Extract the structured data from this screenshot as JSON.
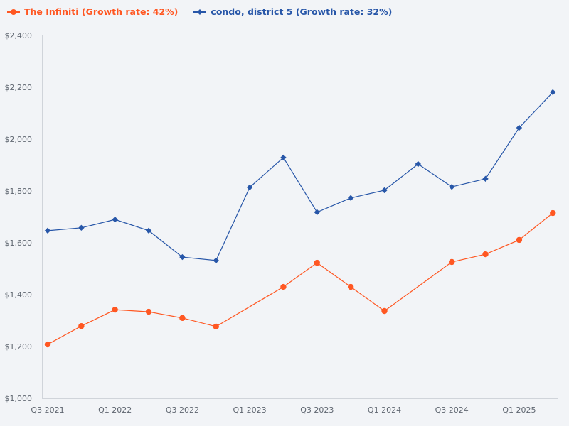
{
  "chart_data": {
    "type": "line",
    "categories": [
      "Q3 2021",
      "Q4 2021",
      "Q1 2022",
      "Q2 2022",
      "Q3 2022",
      "Q4 2022",
      "Q1 2023",
      "Q2 2023",
      "Q3 2023",
      "Q4 2023",
      "Q1 2024",
      "Q2 2024",
      "Q3 2024",
      "Q4 2024",
      "Q1 2025",
      "Q2 2025"
    ],
    "x_tick_labels": [
      "Q3 2021",
      "Q1 2022",
      "Q3 2022",
      "Q1 2023",
      "Q3 2023",
      "Q1 2024",
      "Q3 2024",
      "Q1 2025"
    ],
    "y_tick_labels": [
      "$1,000",
      "$1,200",
      "$1,400",
      "$1,600",
      "$1,800",
      "$2,000",
      "$2,200",
      "$2,400"
    ],
    "ylim": [
      1000,
      2400
    ],
    "grid": false,
    "legend_position": "top-left",
    "series": [
      {
        "name": "The Infiniti (Growth rate: 42%)",
        "color": "#ff5722",
        "marker": "circle",
        "values": [
          1208,
          1279,
          1342,
          1334,
          1310,
          1277,
          null,
          1430,
          1523,
          1430,
          1337,
          null,
          1526,
          1556,
          1611,
          1715
        ]
      },
      {
        "name": "condo, district 5 (Growth rate: 32%)",
        "color": "#2756a8",
        "marker": "diamond",
        "values": [
          1647,
          1658,
          1690,
          1647,
          1545,
          1532,
          1814,
          1929,
          1718,
          1773,
          1803,
          1904,
          1816,
          1847,
          2044,
          2181
        ]
      }
    ]
  }
}
